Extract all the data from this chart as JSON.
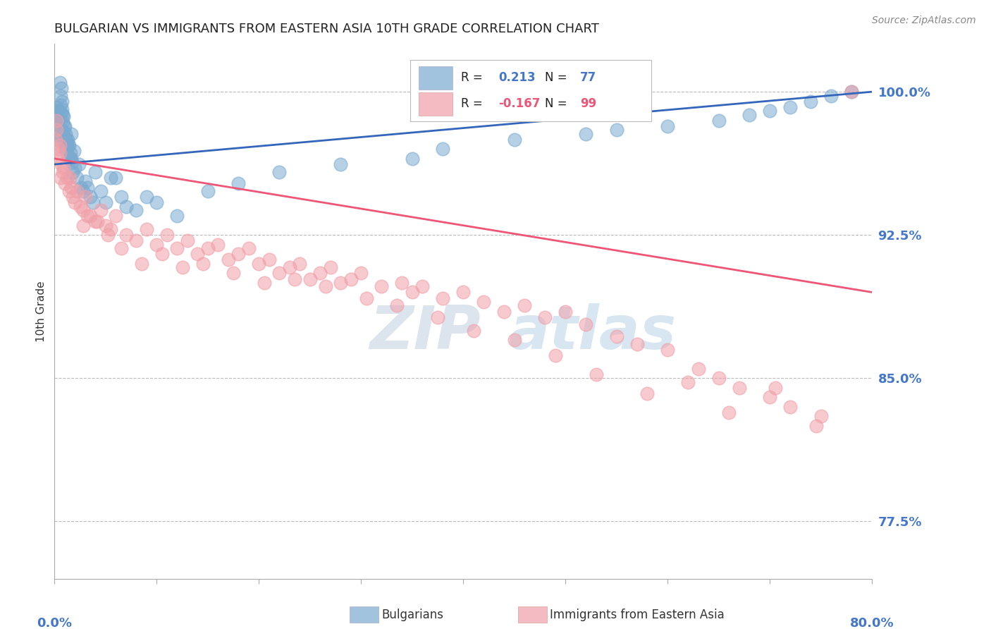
{
  "title": "BULGARIAN VS IMMIGRANTS FROM EASTERN ASIA 10TH GRADE CORRELATION CHART",
  "source": "Source: ZipAtlas.com",
  "ylabel": "10th Grade",
  "xmin": 0.0,
  "xmax": 80.0,
  "ymin": 74.5,
  "ymax": 102.5,
  "yticks": [
    77.5,
    85.0,
    92.5,
    100.0
  ],
  "blue_R": 0.213,
  "blue_N": 77,
  "pink_R": -0.167,
  "pink_N": 99,
  "blue_color": "#7AAAD0",
  "pink_color": "#F0A0A8",
  "blue_line_color": "#3366BB",
  "pink_line_color": "#EE5577",
  "title_color": "#222222",
  "axis_label_color": "#4477CC",
  "grid_color": "#BBBBBB",
  "watermark_color": "#C8D8EC",
  "blue_x": [
    0.1,
    0.15,
    0.2,
    0.25,
    0.3,
    0.35,
    0.4,
    0.45,
    0.5,
    0.55,
    0.6,
    0.65,
    0.7,
    0.75,
    0.8,
    0.85,
    0.9,
    0.95,
    1.0,
    1.1,
    1.2,
    1.3,
    1.4,
    1.5,
    1.6,
    1.7,
    1.8,
    1.9,
    2.0,
    2.2,
    2.4,
    2.6,
    2.8,
    3.0,
    3.5,
    4.0,
    5.0,
    6.0,
    7.0,
    8.0,
    9.0,
    10.0,
    12.0,
    15.0,
    18.0,
    22.0,
    28.0,
    35.0,
    38.0,
    45.0,
    52.0,
    55.0,
    60.0,
    65.0,
    68.0,
    70.0,
    72.0,
    74.0,
    76.0,
    78.0,
    3.2,
    3.8,
    4.5,
    5.5,
    6.5,
    1.25,
    1.55,
    0.55,
    0.62,
    0.68,
    0.72,
    0.82,
    0.92,
    1.05,
    1.15,
    1.35,
    1.65
  ],
  "blue_y": [
    99.0,
    98.5,
    99.2,
    98.8,
    97.5,
    98.3,
    99.0,
    98.6,
    97.8,
    98.1,
    99.3,
    97.6,
    98.9,
    99.1,
    98.4,
    97.9,
    98.7,
    97.3,
    98.2,
    97.0,
    96.8,
    97.5,
    97.2,
    96.5,
    97.8,
    96.3,
    95.8,
    96.9,
    96.0,
    95.5,
    96.2,
    95.0,
    94.8,
    95.3,
    94.5,
    95.8,
    94.2,
    95.5,
    94.0,
    93.8,
    94.5,
    94.2,
    93.5,
    94.8,
    95.2,
    95.8,
    96.2,
    96.5,
    97.0,
    97.5,
    97.8,
    98.0,
    98.2,
    98.5,
    98.8,
    99.0,
    99.2,
    99.5,
    99.8,
    100.0,
    95.0,
    94.2,
    94.8,
    95.5,
    94.5,
    97.2,
    96.8,
    100.5,
    99.8,
    100.2,
    99.5,
    98.8,
    98.2,
    97.8,
    97.5,
    97.2,
    96.5
  ],
  "pink_x": [
    0.1,
    0.2,
    0.3,
    0.4,
    0.5,
    0.6,
    0.7,
    0.8,
    0.9,
    1.0,
    1.2,
    1.4,
    1.6,
    1.8,
    2.0,
    2.2,
    2.5,
    2.8,
    3.0,
    3.5,
    4.0,
    4.5,
    5.0,
    5.5,
    6.0,
    7.0,
    8.0,
    9.0,
    10.0,
    11.0,
    12.0,
    13.0,
    14.0,
    15.0,
    16.0,
    17.0,
    18.0,
    19.0,
    20.0,
    21.0,
    22.0,
    23.0,
    24.0,
    25.0,
    26.0,
    27.0,
    28.0,
    29.0,
    30.0,
    32.0,
    34.0,
    35.0,
    36.0,
    38.0,
    40.0,
    42.0,
    44.0,
    46.0,
    48.0,
    50.0,
    52.0,
    55.0,
    57.0,
    60.0,
    63.0,
    65.0,
    67.0,
    70.0,
    72.0,
    75.0,
    78.0,
    1.5,
    2.8,
    3.2,
    4.2,
    5.2,
    6.5,
    8.5,
    10.5,
    12.5,
    14.5,
    17.5,
    20.5,
    23.5,
    26.5,
    30.5,
    33.5,
    37.5,
    41.0,
    45.0,
    49.0,
    53.0,
    58.0,
    62.0,
    66.0,
    70.5,
    74.5,
    0.15,
    0.55
  ],
  "pink_y": [
    97.5,
    98.0,
    96.5,
    97.0,
    96.8,
    95.5,
    96.2,
    95.8,
    96.0,
    95.2,
    95.5,
    94.8,
    95.0,
    94.5,
    94.2,
    94.8,
    94.0,
    93.8,
    94.5,
    93.5,
    93.2,
    93.8,
    93.0,
    92.8,
    93.5,
    92.5,
    92.2,
    92.8,
    92.0,
    92.5,
    91.8,
    92.2,
    91.5,
    91.8,
    92.0,
    91.2,
    91.5,
    91.8,
    91.0,
    91.2,
    90.5,
    90.8,
    91.0,
    90.2,
    90.5,
    90.8,
    90.0,
    90.2,
    90.5,
    89.8,
    90.0,
    89.5,
    89.8,
    89.2,
    89.5,
    89.0,
    88.5,
    88.8,
    88.2,
    88.5,
    87.8,
    87.2,
    86.8,
    86.5,
    85.5,
    85.0,
    84.5,
    84.0,
    83.5,
    83.0,
    100.0,
    95.5,
    93.0,
    93.5,
    93.2,
    92.5,
    91.8,
    91.0,
    91.5,
    90.8,
    91.0,
    90.5,
    90.0,
    90.2,
    89.8,
    89.2,
    88.8,
    88.2,
    87.5,
    87.0,
    86.2,
    85.2,
    84.2,
    84.8,
    83.2,
    84.5,
    82.5,
    98.5,
    97.2
  ]
}
